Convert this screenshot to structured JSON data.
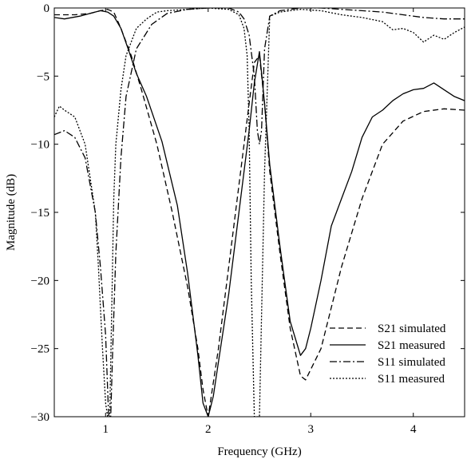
{
  "chart_data": {
    "type": "line",
    "title": "",
    "xlabel": "Frequency (GHz)",
    "ylabel": "Magnitude (dB)",
    "xlim": [
      0.5,
      4.5
    ],
    "ylim": [
      -30,
      0
    ],
    "xticks": [
      1,
      2,
      3,
      4
    ],
    "xtick_labels": [
      "1",
      "2",
      "3",
      "4"
    ],
    "yticks": [
      0,
      -5,
      -10,
      -15,
      -20,
      -25,
      -30
    ],
    "ytick_labels": [
      "0",
      "−5",
      "−10",
      "−15",
      "−20",
      "−25",
      "−30"
    ],
    "grid": false,
    "legend_position": "bottom-right",
    "series": [
      {
        "name": "S21 simulated",
        "style": "dashed",
        "color": "#000000",
        "x": [
          0.5,
          0.7,
          0.85,
          0.95,
          1.02,
          1.08,
          1.15,
          1.25,
          1.35,
          1.5,
          1.65,
          1.8,
          1.9,
          1.95,
          2.0,
          2.1,
          2.2,
          2.3,
          2.4,
          2.45,
          2.5,
          2.55,
          2.6,
          2.7,
          2.8,
          2.9,
          2.95,
          3.1,
          3.3,
          3.5,
          3.7,
          3.9,
          4.1,
          4.3,
          4.5
        ],
        "y": [
          -0.5,
          -0.5,
          -0.4,
          -0.2,
          -0.1,
          -0.3,
          -1.5,
          -3.5,
          -6.0,
          -10.0,
          -15.0,
          -20.5,
          -25.0,
          -28.0,
          -30,
          -25.0,
          -19.0,
          -13.0,
          -7.0,
          -4.0,
          -3.5,
          -7.0,
          -12.0,
          -18.0,
          -23.5,
          -27.0,
          -27.3,
          -25.0,
          -19.0,
          -14.0,
          -10.0,
          -8.3,
          -7.6,
          -7.4,
          -7.5
        ]
      },
      {
        "name": "S21 measured",
        "style": "solid",
        "color": "#000000",
        "x": [
          0.5,
          0.6,
          0.75,
          0.85,
          0.95,
          1.02,
          1.08,
          1.15,
          1.22,
          1.3,
          1.4,
          1.55,
          1.7,
          1.8,
          1.9,
          1.95,
          2.0,
          2.05,
          2.1,
          2.2,
          2.3,
          2.4,
          2.45,
          2.5,
          2.55,
          2.6,
          2.7,
          2.8,
          2.9,
          2.95,
          3.0,
          3.1,
          3.2,
          3.3,
          3.4,
          3.5,
          3.6,
          3.7,
          3.8,
          3.9,
          4.0,
          4.1,
          4.2,
          4.3,
          4.4,
          4.5
        ],
        "y": [
          -0.7,
          -0.8,
          -0.6,
          -0.4,
          -0.2,
          -0.3,
          -0.6,
          -1.5,
          -3.0,
          -4.8,
          -6.5,
          -9.8,
          -14.5,
          -19.5,
          -25.5,
          -29.0,
          -30,
          -28.5,
          -26.0,
          -21.0,
          -15.0,
          -9.0,
          -5.5,
          -3.2,
          -7.0,
          -11.5,
          -17.5,
          -23.0,
          -25.5,
          -25.0,
          -23.5,
          -20.0,
          -16.0,
          -14.0,
          -12.0,
          -9.5,
          -8.0,
          -7.5,
          -6.8,
          -6.3,
          -6.0,
          -5.9,
          -5.5,
          -6.0,
          -6.5,
          -6.8
        ]
      },
      {
        "name": "S11 simulated",
        "style": "dashdot",
        "color": "#000000",
        "x": [
          0.5,
          0.6,
          0.7,
          0.8,
          0.9,
          0.95,
          1.0,
          1.03,
          1.05,
          1.07,
          1.1,
          1.15,
          1.2,
          1.3,
          1.45,
          1.6,
          1.8,
          2.0,
          2.2,
          2.3,
          2.35,
          2.4,
          2.45,
          2.48,
          2.5,
          2.52,
          2.55,
          2.6,
          2.7,
          2.9,
          3.1,
          3.3,
          3.5,
          3.7,
          3.9,
          4.1,
          4.3,
          4.5
        ],
        "y": [
          -9.3,
          -9.0,
          -9.5,
          -11.0,
          -15.0,
          -19.0,
          -24.0,
          -30,
          -30,
          -25.0,
          -18.0,
          -11.0,
          -6.5,
          -3.0,
          -1.2,
          -0.4,
          -0.1,
          0.0,
          0.0,
          -0.3,
          -0.8,
          -2.0,
          -5.0,
          -9.0,
          -10.0,
          -9.0,
          -3.0,
          -0.6,
          -0.2,
          0.0,
          0.0,
          -0.1,
          -0.2,
          -0.3,
          -0.5,
          -0.7,
          -0.8,
          -0.8
        ]
      },
      {
        "name": "S11 measured",
        "style": "dotted",
        "color": "#000000",
        "x": [
          0.5,
          0.55,
          0.6,
          0.7,
          0.8,
          0.85,
          0.9,
          0.93,
          0.95,
          0.97,
          1.0,
          1.02,
          1.04,
          1.06,
          1.08,
          1.1,
          1.15,
          1.2,
          1.3,
          1.4,
          1.5,
          1.6,
          1.8,
          2.0,
          2.2,
          2.3,
          2.35,
          2.38,
          2.4,
          2.42,
          2.45,
          2.5,
          2.55,
          2.6,
          2.7,
          2.9,
          3.1,
          3.3,
          3.5,
          3.7,
          3.8,
          3.9,
          4.0,
          4.1,
          4.2,
          4.3,
          4.4,
          4.5
        ],
        "y": [
          -8.0,
          -7.2,
          -7.5,
          -8.0,
          -10.0,
          -12.5,
          -15.0,
          -19.0,
          -22.0,
          -25.0,
          -29.0,
          -30,
          -30,
          -22.0,
          -14.0,
          -10.0,
          -6.0,
          -3.5,
          -1.5,
          -0.8,
          -0.3,
          -0.2,
          -0.1,
          0.0,
          -0.1,
          -0.5,
          -1.5,
          -3.5,
          -9.0,
          -20.0,
          -30,
          -30,
          -12.0,
          -0.6,
          -0.3,
          -0.1,
          -0.2,
          -0.5,
          -0.7,
          -1.0,
          -1.6,
          -1.5,
          -1.8,
          -2.5,
          -2.0,
          -2.3,
          -1.8,
          -1.4
        ]
      }
    ]
  }
}
